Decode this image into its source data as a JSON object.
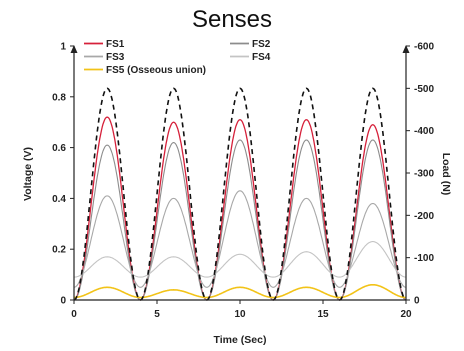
{
  "chart_data": {
    "type": "line",
    "title": "Senses",
    "xlabel": "Time (Sec)",
    "ylabel": "Voltage (V)",
    "y2label": "Load (N)",
    "xlim": [
      0,
      20
    ],
    "ylim": [
      0,
      1
    ],
    "y2lim": [
      0,
      -600
    ],
    "xticks": [
      "0",
      "5",
      "10",
      "15",
      "20"
    ],
    "yticks": [
      "0",
      "0.2",
      "0.4",
      "0.6",
      "0.8",
      "1"
    ],
    "y2ticks": [
      "0",
      "-100",
      "-200",
      "-300",
      "-400",
      "-500",
      "-600"
    ],
    "legend_position": "top",
    "period": 4,
    "peak_times": [
      2,
      6,
      10,
      14,
      18
    ],
    "series": [
      {
        "name": "FS1",
        "axis": "left",
        "color": "#d6203a",
        "width": 1.3,
        "dash": "",
        "baseline": 0.0,
        "peak": 0.7,
        "peaks": [
          0.72,
          0.7,
          0.71,
          0.71,
          0.69
        ]
      },
      {
        "name": "FS2",
        "axis": "left",
        "color": "#8c8c8c",
        "width": 1.1,
        "dash": "",
        "baseline": 0.0,
        "peak": 0.63,
        "peaks": [
          0.61,
          0.62,
          0.63,
          0.63,
          0.63
        ]
      },
      {
        "name": "FS3",
        "axis": "left",
        "color": "#a8a8a8",
        "width": 1.1,
        "dash": "",
        "baseline": 0.05,
        "peak": 0.4,
        "peaks": [
          0.41,
          0.4,
          0.43,
          0.4,
          0.38
        ]
      },
      {
        "name": "FS4",
        "axis": "left",
        "color": "#c4c4c4",
        "width": 1.1,
        "dash": "",
        "baseline": 0.09,
        "peak": 0.2,
        "peaks": [
          0.17,
          0.17,
          0.18,
          0.19,
          0.23
        ]
      },
      {
        "name": "FS5 (Osseous union)",
        "axis": "left",
        "color": "#f2c318",
        "width": 1.6,
        "dash": "",
        "baseline": 0.01,
        "peak": 0.05,
        "peaks": [
          0.05,
          0.04,
          0.05,
          0.05,
          0.06
        ]
      },
      {
        "name": "",
        "axis": "right",
        "color": "#111111",
        "width": 1.6,
        "dash": "5,4",
        "baseline": 0,
        "peak": -500,
        "peaks": [
          -500,
          -500,
          -500,
          -500,
          -500
        ]
      }
    ]
  }
}
